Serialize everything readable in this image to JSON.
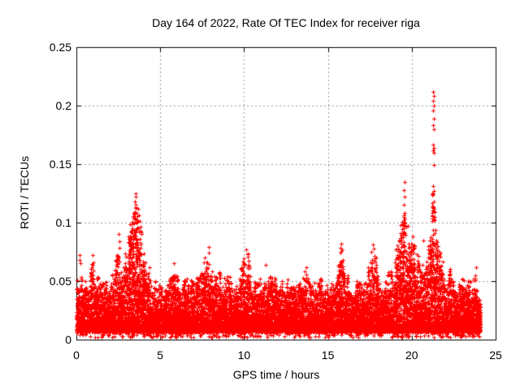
{
  "chart_data": {
    "type": "scatter",
    "title": "Day 164 of 2022, Rate Of TEC Index for receiver riga",
    "xlabel": "GPS time / hours",
    "ylabel": "ROTI / TECUs",
    "marker": "+",
    "marker_color": "#ff0000",
    "grid_color": "#999999",
    "axis_color": "#000000",
    "grid": true,
    "legend": false,
    "xlim": [
      0,
      25
    ],
    "ylim": [
      0,
      0.25
    ],
    "xticks": [
      0,
      5,
      10,
      15,
      20,
      25
    ],
    "yticks": [
      0,
      0.05,
      0.1,
      0.15,
      0.2,
      0.25
    ],
    "xtick_labels": [
      "0",
      "5",
      "10",
      "15",
      "20",
      "25"
    ],
    "ytick_labels": [
      "0",
      "0.05",
      "0.1",
      "0.15",
      "0.2",
      "0.25"
    ],
    "data_x_range": [
      0,
      24.08
    ],
    "band": {
      "bottom_min": 0.006,
      "bottom_jitter": 0.006,
      "solid_top_typical": 0.035,
      "fuzzy_top_typical": 0.05,
      "straggler_min": 0.002
    },
    "envelope": {
      "x0": 0.0,
      "dx": 0.25,
      "max_roti": [
        0.05,
        0.072,
        0.06,
        0.055,
        0.072,
        0.058,
        0.054,
        0.053,
        0.055,
        0.06,
        0.088,
        0.07,
        0.085,
        0.105,
        0.125,
        0.11,
        0.085,
        0.07,
        0.06,
        0.055,
        0.05,
        0.052,
        0.055,
        0.065,
        0.056,
        0.052,
        0.058,
        0.055,
        0.052,
        0.055,
        0.06,
        0.08,
        0.072,
        0.065,
        0.068,
        0.062,
        0.058,
        0.061,
        0.055,
        0.06,
        0.07,
        0.077,
        0.058,
        0.055,
        0.058,
        0.065,
        0.058,
        0.055,
        0.058,
        0.055,
        0.052,
        0.055,
        0.052,
        0.053,
        0.058,
        0.062,
        0.052,
        0.05,
        0.055,
        0.052,
        0.05,
        0.052,
        0.06,
        0.082,
        0.058,
        0.053,
        0.055,
        0.055,
        0.058,
        0.06,
        0.075,
        0.081,
        0.065,
        0.06,
        0.065,
        0.062,
        0.075,
        0.09,
        0.112,
        0.105,
        0.09,
        0.082,
        0.075,
        0.078,
        0.085,
        0.13,
        0.09,
        0.075,
        0.068,
        0.065,
        0.062,
        0.058,
        0.055,
        0.052,
        0.055,
        0.062,
        0.042
      ]
    },
    "outliers": [
      [
        0.18,
        0.068
      ],
      [
        0.2,
        0.072
      ],
      [
        0.22,
        0.065
      ],
      [
        0.95,
        0.072
      ],
      [
        0.97,
        0.064
      ],
      [
        2.53,
        0.09
      ],
      [
        2.55,
        0.084
      ],
      [
        3.4,
        0.104
      ],
      [
        3.45,
        0.108
      ],
      [
        3.5,
        0.118
      ],
      [
        3.52,
        0.125
      ],
      [
        3.54,
        0.122
      ],
      [
        3.56,
        0.115
      ],
      [
        3.6,
        0.1
      ],
      [
        5.8,
        0.065
      ],
      [
        7.9,
        0.079
      ],
      [
        7.92,
        0.074
      ],
      [
        10.15,
        0.077
      ],
      [
        10.2,
        0.073
      ],
      [
        11.3,
        0.064
      ],
      [
        13.7,
        0.062
      ],
      [
        15.8,
        0.082
      ],
      [
        15.82,
        0.077
      ],
      [
        17.7,
        0.081
      ],
      [
        17.74,
        0.078
      ],
      [
        19.52,
        0.101
      ],
      [
        19.53,
        0.128
      ],
      [
        19.54,
        0.115
      ],
      [
        19.55,
        0.135
      ],
      [
        19.56,
        0.108
      ],
      [
        19.57,
        0.122
      ],
      [
        19.58,
        0.098
      ],
      [
        20.7,
        0.085
      ],
      [
        21.27,
        0.204
      ],
      [
        21.27,
        0.162
      ],
      [
        21.27,
        0.113
      ],
      [
        21.28,
        0.212
      ],
      [
        21.28,
        0.183
      ],
      [
        21.28,
        0.131
      ],
      [
        21.29,
        0.196
      ],
      [
        21.29,
        0.167
      ],
      [
        21.29,
        0.124
      ],
      [
        21.3,
        0.208
      ],
      [
        21.3,
        0.189
      ],
      [
        21.3,
        0.16
      ],
      [
        21.3,
        0.149
      ],
      [
        21.31,
        0.2
      ],
      [
        21.31,
        0.164
      ],
      [
        21.31,
        0.118
      ],
      [
        21.32,
        0.18
      ],
      [
        21.32,
        0.127
      ],
      [
        21.33,
        0.11
      ],
      [
        23.85,
        0.062
      ]
    ],
    "gen": {
      "seed": 20220613,
      "col_dx": 0.1,
      "pts_per_col": 62,
      "power": 2.6,
      "col_top_min_frac": 0.6,
      "straggler_prob": 0.025,
      "spike_fill_threshold": 0.072,
      "spike_fill_gain": 250,
      "spike_fill_power": 1.2,
      "spike_fill_base": 0.03
    }
  }
}
